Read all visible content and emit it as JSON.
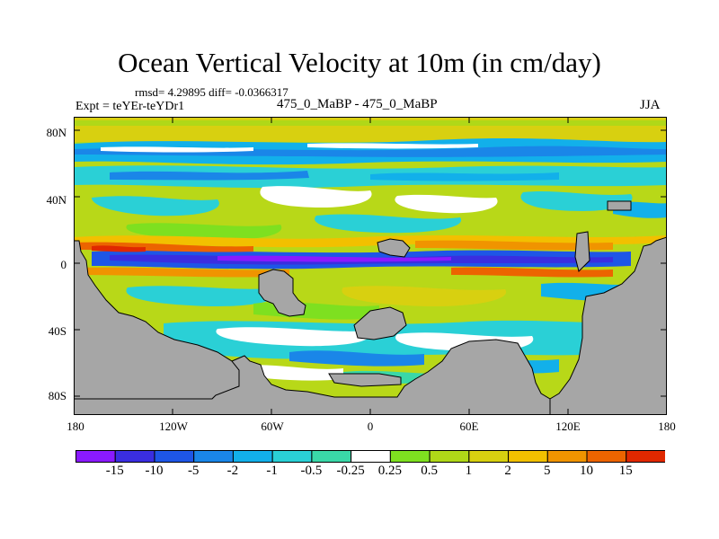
{
  "title": "Ocean Vertical Velocity at 10m (in cm/day)",
  "stats_line": "rmsd= 4.29895  diff= -0.0366317",
  "experiment": "Expt = teYEr-teYDr1",
  "cases": "475_0_MaBP - 475_0_MaBP",
  "season": "JJA",
  "y_axis": {
    "labels": [
      "80N",
      "40N",
      "0",
      "40S",
      "80S"
    ],
    "values": [
      80,
      40,
      0,
      -40,
      -80
    ]
  },
  "x_axis": {
    "labels": [
      "180",
      "120W",
      "60W",
      "0",
      "60E",
      "120E",
      "180"
    ],
    "values": [
      -180,
      -120,
      -60,
      0,
      60,
      120,
      180
    ]
  },
  "colorbar": {
    "labels": [
      "-15",
      "-10",
      "-5",
      "-2",
      "-1",
      "-0.5",
      "-0.25",
      "0.25",
      "0.5",
      "1",
      "2",
      "5",
      "10",
      "15"
    ],
    "colors": [
      "#8a1aff",
      "#3a2ee0",
      "#1e56e6",
      "#1a86e8",
      "#12b0ea",
      "#2ad0d6",
      "#3ad8a8",
      "#ffffff",
      "#7ee020",
      "#b0d818",
      "#d8d010",
      "#f2c000",
      "#f09400",
      "#ec6400",
      "#e02800"
    ]
  },
  "land_color": "#a6a6a6"
}
